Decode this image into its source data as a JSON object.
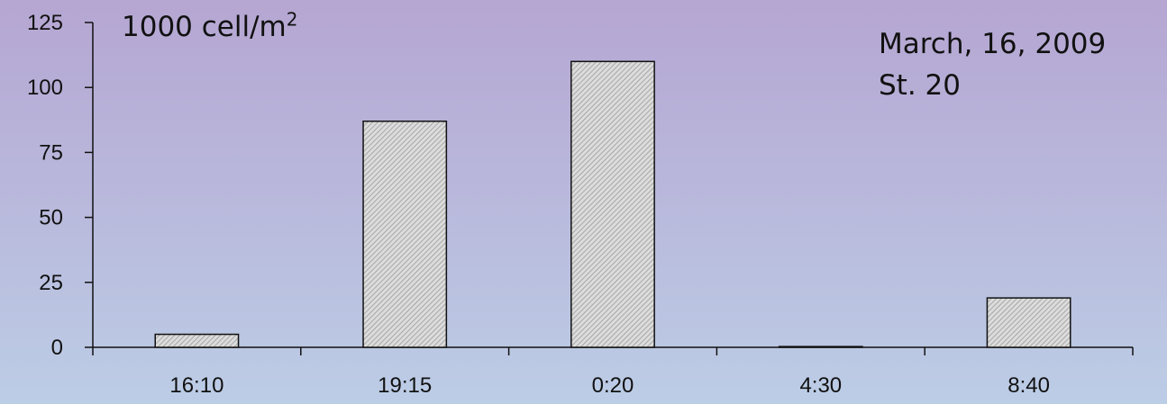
{
  "chart_data": {
    "type": "bar",
    "categories": [
      "16:10",
      "19:15",
      "0:20",
      "4:30",
      "8:40"
    ],
    "values": [
      5,
      87,
      110,
      0.3,
      19
    ],
    "ylim": [
      0,
      125
    ],
    "yticks": [
      0,
      25,
      50,
      75,
      100,
      125
    ],
    "unit_text": "1000 cell/m",
    "unit_superscript": "2",
    "annotation_lines": [
      "March, 16, 2009",
      "St. 20"
    ],
    "grid": false,
    "bar_fill": "#d4d4d4",
    "bar_stroke": "#111111"
  }
}
